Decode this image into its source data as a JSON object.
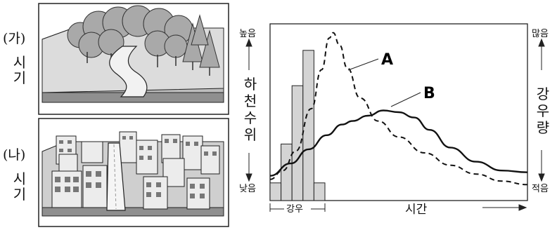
{
  "panels": {
    "ga": {
      "label": "(가)",
      "sub": [
        "시",
        "기"
      ]
    },
    "na": {
      "label": "(나)",
      "sub": [
        "시",
        "기"
      ]
    }
  },
  "graph": {
    "left_top": "높음",
    "left_bottom": "낮음",
    "left_axis": [
      "하",
      "천",
      "수",
      "위"
    ],
    "right_top": "많음",
    "right_bottom": "적음",
    "right_axis": [
      "강",
      "우",
      "량"
    ],
    "x_label": "시간",
    "rain_label": "강우",
    "curve_a_label": "A",
    "curve_b_label": "B"
  },
  "chart_data": {
    "type": "bar",
    "rainfall_bars": [
      0.1,
      0.32,
      0.65,
      0.85,
      0.1
    ],
    "curve_a": [
      [
        0.0,
        0.12
      ],
      [
        0.05,
        0.17
      ],
      [
        0.1,
        0.28
      ],
      [
        0.16,
        0.52
      ],
      [
        0.2,
        0.74
      ],
      [
        0.23,
        0.92
      ],
      [
        0.245,
        0.95
      ],
      [
        0.27,
        0.88
      ],
      [
        0.3,
        0.75
      ],
      [
        0.35,
        0.58
      ],
      [
        0.42,
        0.45
      ],
      [
        0.5,
        0.36
      ],
      [
        0.6,
        0.27
      ],
      [
        0.7,
        0.2
      ],
      [
        0.8,
        0.15
      ],
      [
        0.9,
        0.11
      ],
      [
        1.0,
        0.09
      ]
    ],
    "curve_b": [
      [
        0.0,
        0.14
      ],
      [
        0.08,
        0.21
      ],
      [
        0.15,
        0.29
      ],
      [
        0.22,
        0.37
      ],
      [
        0.28,
        0.43
      ],
      [
        0.32,
        0.45
      ],
      [
        0.38,
        0.48
      ],
      [
        0.44,
        0.51
      ],
      [
        0.5,
        0.5
      ],
      [
        0.56,
        0.47
      ],
      [
        0.62,
        0.4
      ],
      [
        0.7,
        0.3
      ],
      [
        0.8,
        0.22
      ],
      [
        0.9,
        0.17
      ],
      [
        1.0,
        0.16
      ]
    ]
  },
  "colors": {
    "bar_fill": "#d4d4d4",
    "line": "#111111",
    "sky_left": "#ffffff"
  }
}
